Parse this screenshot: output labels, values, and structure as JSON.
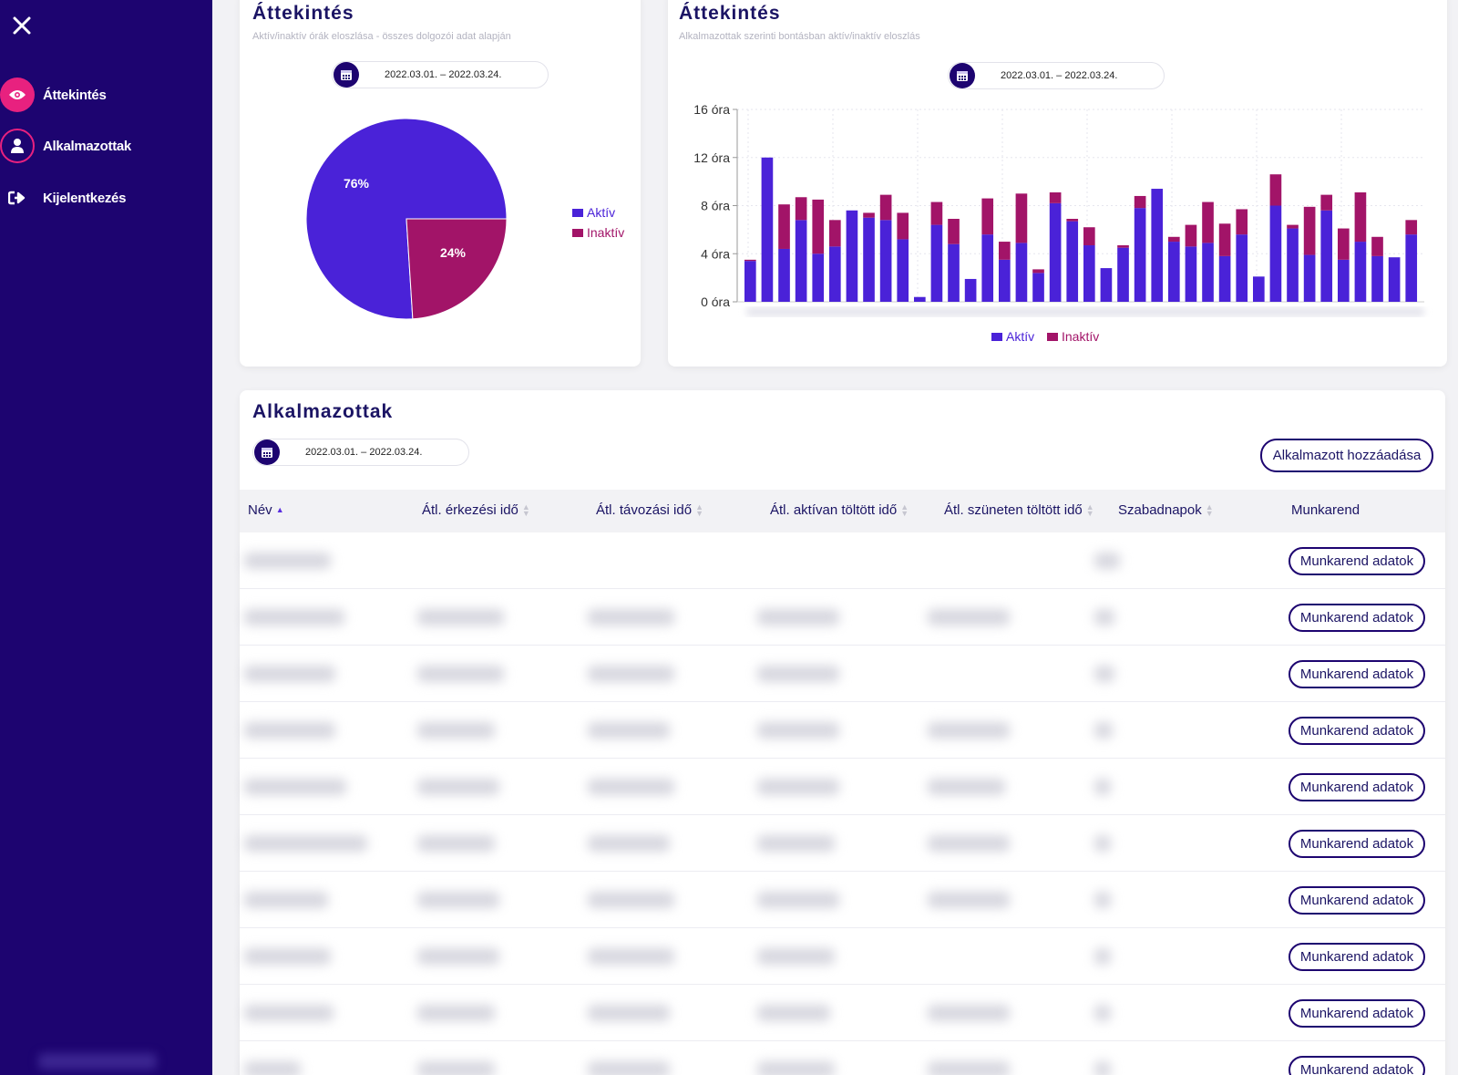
{
  "colors": {
    "sidebar": "#1d0470",
    "accent": "#e8217f",
    "active": "#4a22d8",
    "inactive": "#a21468"
  },
  "sidebar": {
    "close_icon": "close-icon",
    "items": [
      {
        "label": "Áttekintés",
        "icon": "eye-icon",
        "active": true
      },
      {
        "label": "Alkalmazottak",
        "icon": "user-icon",
        "active": false
      },
      {
        "label": "Kijelentkezés",
        "icon": "logout-icon",
        "active": false
      }
    ]
  },
  "pie_card": {
    "title": "Áttekintés",
    "subtitle": "Aktív/inaktív órák eloszlása - összes dolgozói adat alapján",
    "date_range": "2022.03.01. – 2022.03.24.",
    "legend": [
      "Aktív",
      "Inaktív"
    ]
  },
  "bar_card": {
    "title": "Áttekintés",
    "subtitle": "Alkalmazottak szerinti bontásban aktív/inaktív eloszlás",
    "date_range": "2022.03.01. – 2022.03.24.",
    "legend": [
      "Aktív",
      "Inaktív"
    ]
  },
  "employees": {
    "title": "Alkalmazottak",
    "date_range": "2022.03.01. – 2022.03.24.",
    "add_button": "Alkalmazott hozzáadása",
    "columns": [
      "Név",
      "Átl. érkezési idő",
      "Átl. távozási idő",
      "Átl. aktívan töltött idő",
      "Átl. szüneten töltött idő",
      "Szabadnapok",
      "Munkarend"
    ],
    "row_button": "Munkarend adatok"
  },
  "chart_data": [
    {
      "type": "pie",
      "labels": [
        "Aktív",
        "Inaktív"
      ],
      "values": [
        76,
        24
      ],
      "slice_labels": [
        "76%",
        "24%"
      ]
    },
    {
      "type": "bar",
      "stacked": true,
      "yticks": [
        "16 óra",
        "12 óra",
        "8 óra",
        "4 óra",
        "0 óra"
      ],
      "ylim": [
        0,
        16
      ],
      "legend": "bottom",
      "series": [
        {
          "name": "Aktív",
          "values": [
            3.4,
            12,
            4.4,
            6.8,
            4.0,
            4.6,
            7.6,
            7.0,
            6.8,
            5.2,
            0.4,
            6.4,
            4.8,
            1.9,
            5.6,
            3.5,
            4.9,
            2.4,
            8.2,
            6.7,
            4.7,
            2.8,
            4.5,
            7.8,
            9.4,
            5.0,
            4.6,
            4.9,
            3.8,
            5.6,
            2.1,
            8.0,
            6.1,
            3.9,
            7.6,
            3.5,
            5.0,
            3.8,
            3.7,
            5.6
          ]
        },
        {
          "name": "Inaktív",
          "values": [
            0.1,
            0,
            3.7,
            1.9,
            4.5,
            2.2,
            0,
            0.4,
            2.1,
            2.2,
            0,
            1.9,
            2.1,
            0,
            3.0,
            1.5,
            4.1,
            0.3,
            0.9,
            0.2,
            1.5,
            0,
            0.2,
            1.0,
            0,
            0.4,
            1.8,
            3.4,
            2.7,
            2.1,
            0,
            2.6,
            0.3,
            4.0,
            1.3,
            2.6,
            4.1,
            1.6,
            0,
            1.2
          ]
        }
      ]
    }
  ]
}
